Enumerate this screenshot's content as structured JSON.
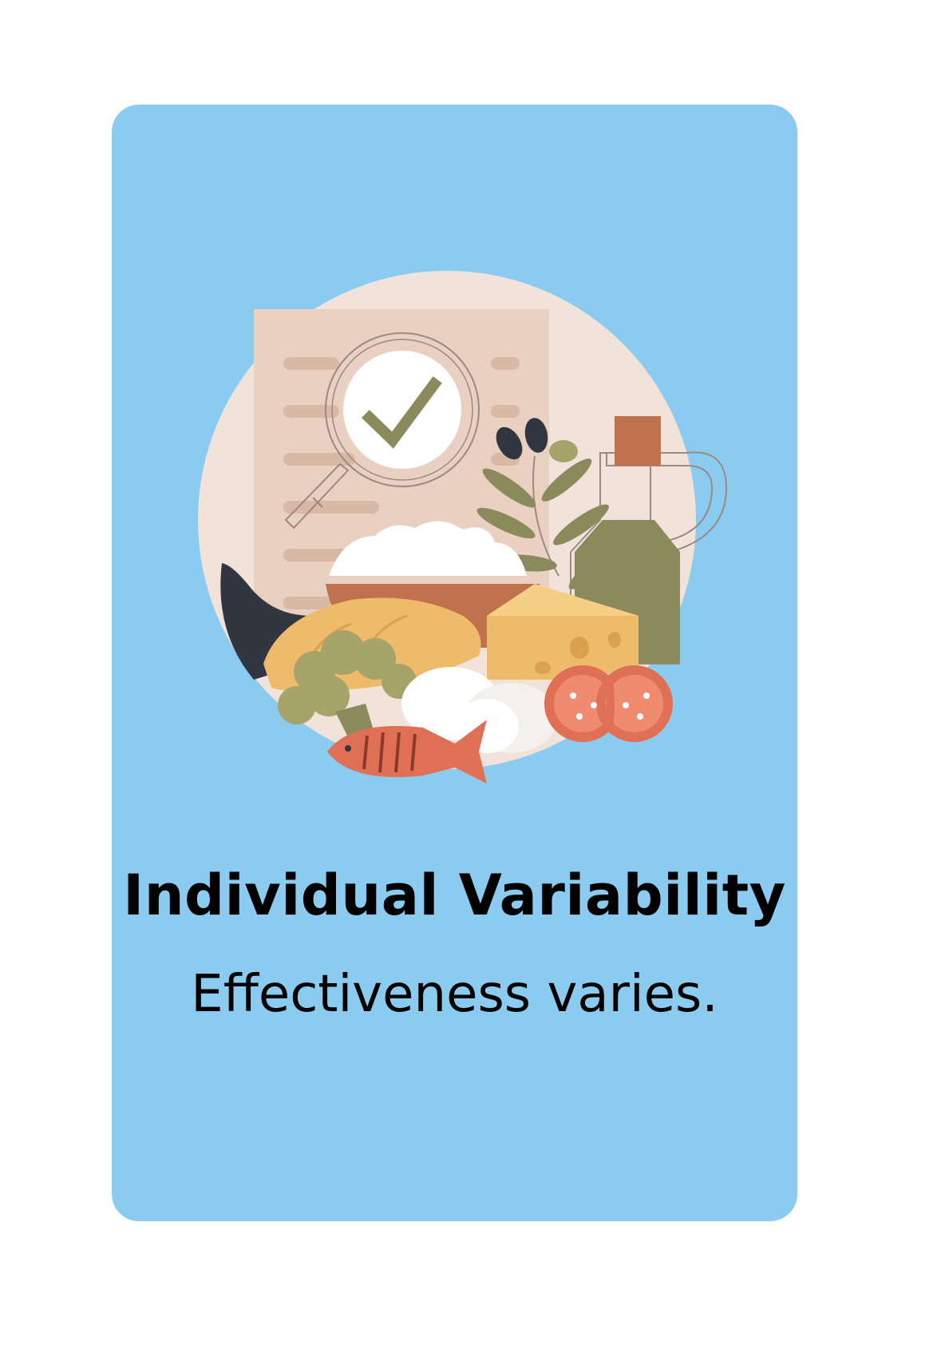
{
  "card": {
    "background_color": "#8ccbf0",
    "title": "Individual Variability",
    "subtitle": "Effectiveness varies."
  },
  "illustration": {
    "subject": "healthy-food-with-checklist",
    "icons": [
      "checklist-icon",
      "magnifier-check-icon",
      "olive-branch-icon",
      "oil-bottle-icon",
      "rice-bowl-icon",
      "cheese-icon",
      "bread-icon",
      "eggplant-icon",
      "broccoli-icon",
      "eggs-icon",
      "tomato-icon",
      "fish-icon"
    ],
    "colors": {
      "disc": "#f1e3d9",
      "paper": "#e9d0c1",
      "olive": "#8a8a5c",
      "cheese": "#eebb6a",
      "bowl": "#c0714e",
      "tomato": "#e07055",
      "eggplant": "#323640"
    }
  }
}
